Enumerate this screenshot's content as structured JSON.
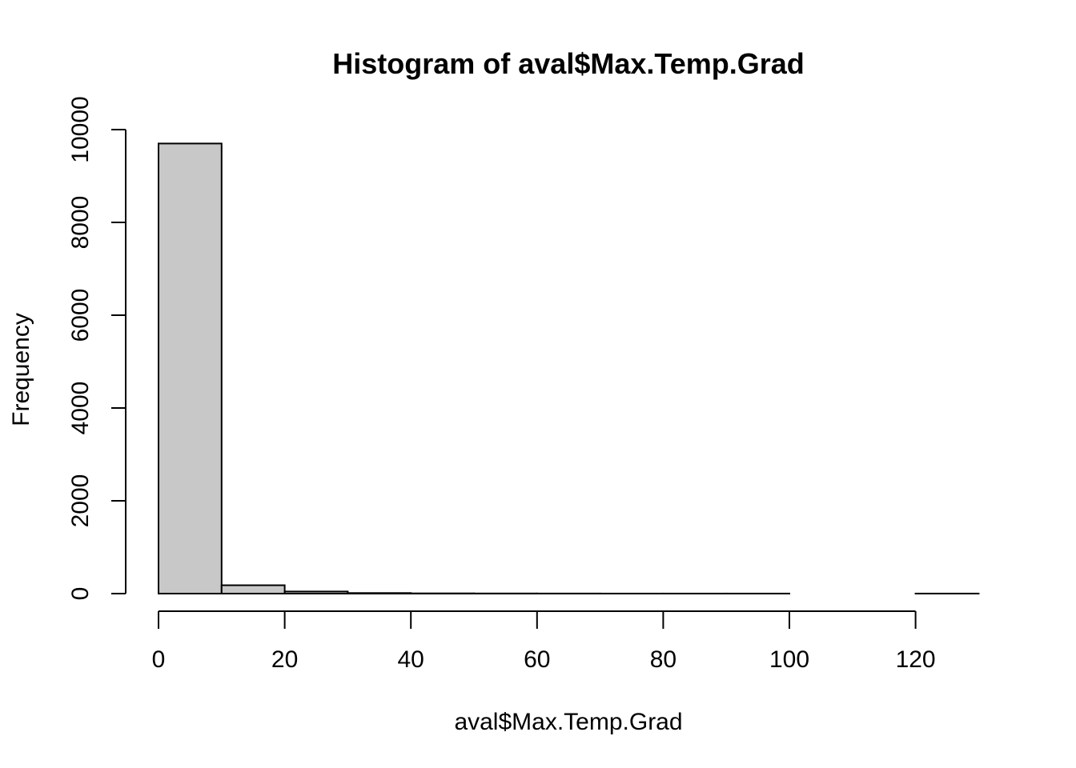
{
  "chart_data": {
    "type": "bar",
    "title": "Histogram of aval$Max.Temp.Grad",
    "xlabel": "aval$Max.Temp.Grad",
    "ylabel": "Frequency",
    "bins": [
      {
        "start": 0,
        "end": 10,
        "count": 9700
      },
      {
        "start": 10,
        "end": 20,
        "count": 180
      },
      {
        "start": 20,
        "end": 30,
        "count": 45
      },
      {
        "start": 30,
        "end": 40,
        "count": 12
      },
      {
        "start": 40,
        "end": 50,
        "count": 5
      },
      {
        "start": 50,
        "end": 60,
        "count": 3
      },
      {
        "start": 60,
        "end": 70,
        "count": 2
      },
      {
        "start": 70,
        "end": 80,
        "count": 1
      },
      {
        "start": 80,
        "end": 90,
        "count": 1
      },
      {
        "start": 90,
        "end": 100,
        "count": 1
      },
      {
        "start": 100,
        "end": 110,
        "count": 0
      },
      {
        "start": 110,
        "end": 120,
        "count": 0
      },
      {
        "start": 120,
        "end": 130,
        "count": 1
      }
    ],
    "xlim": [
      0,
      130
    ],
    "ylim": [
      0,
      10000
    ],
    "x_ticks": [
      0,
      20,
      40,
      60,
      80,
      100,
      120
    ],
    "y_ticks": [
      0,
      2000,
      4000,
      6000,
      8000,
      10000
    ],
    "x_tick_labels": [
      "0",
      "20",
      "40",
      "60",
      "80",
      "100",
      "120"
    ],
    "y_tick_labels": [
      "0",
      "2000",
      "4000",
      "6000",
      "8000",
      "10000"
    ],
    "bar_fill": "#c8c8c8",
    "bar_stroke": "#000000",
    "grid": false,
    "legend": "none"
  }
}
